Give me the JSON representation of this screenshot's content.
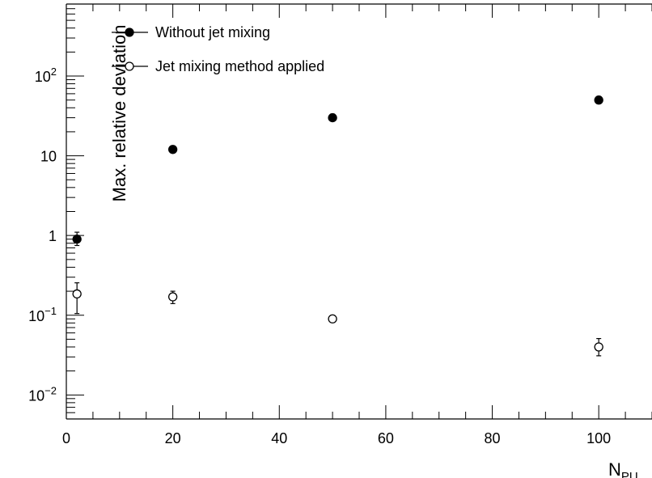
{
  "chart_data": {
    "type": "scatter",
    "xlabel": "N",
    "xlabel_sub": "PU",
    "ylabel": "Max. relative deviation",
    "xlim": [
      0,
      110
    ],
    "ylim": [
      0.005,
      800
    ],
    "yscale": "log",
    "grid": false,
    "legend_position": "top-left",
    "x_tick_labels": [
      "0",
      "20",
      "40",
      "60",
      "80",
      "100"
    ],
    "y_tick_labels": [
      {
        "value": 0.01,
        "base": "10",
        "exp": "−2"
      },
      {
        "value": 0.1,
        "base": "10",
        "exp": "−1"
      },
      {
        "value": 1,
        "base": "1",
        "exp": ""
      },
      {
        "value": 10,
        "base": "10",
        "exp": ""
      },
      {
        "value": 100,
        "base": "10",
        "exp": "2"
      }
    ],
    "series": [
      {
        "name": "Without jet mixing",
        "marker": "filled-circle",
        "color": "#000000",
        "points": [
          {
            "x": 2,
            "y": 0.9,
            "err_lo": 0.15,
            "err_hi": 0.2
          },
          {
            "x": 20,
            "y": 12,
            "err_lo": 0,
            "err_hi": 0
          },
          {
            "x": 50,
            "y": 30,
            "err_lo": 0,
            "err_hi": 0
          },
          {
            "x": 100,
            "y": 50,
            "err_lo": 0,
            "err_hi": 0
          }
        ]
      },
      {
        "name": "Jet mixing method applied",
        "marker": "open-circle",
        "color": "#000000",
        "points": [
          {
            "x": 2,
            "y": 0.185,
            "err_lo": 0.08,
            "err_hi": 0.07
          },
          {
            "x": 20,
            "y": 0.17,
            "err_lo": 0.03,
            "err_hi": 0.03
          },
          {
            "x": 50,
            "y": 0.09,
            "err_lo": 0.005,
            "err_hi": 0.005
          },
          {
            "x": 100,
            "y": 0.04,
            "err_lo": 0.009,
            "err_hi": 0.011
          }
        ]
      }
    ]
  }
}
